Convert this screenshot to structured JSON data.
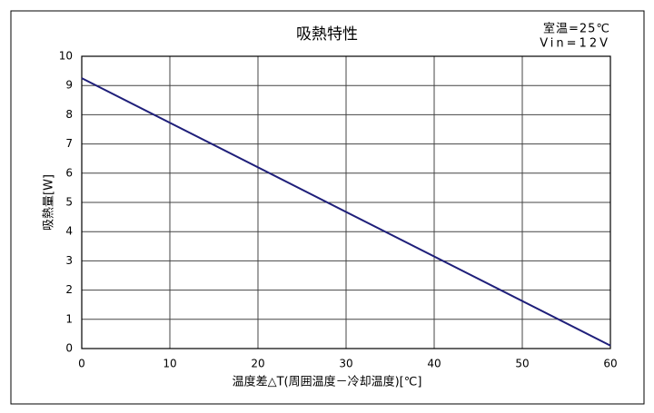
{
  "chart_data": {
    "type": "line",
    "title": "吸熱特性",
    "annotations": [
      "室温=25℃",
      "Vin=12V"
    ],
    "x_label": "温度差△T(周囲温度－冷却温度)[℃]",
    "y_label": "吸熱量[W]",
    "x": [
      0,
      60
    ],
    "series": [
      {
        "color": "#1f1f7a",
        "values": [
          9.25,
          0.1
        ]
      }
    ],
    "xlim": [
      0,
      60
    ],
    "xticks": [
      0,
      10,
      20,
      30,
      40,
      50,
      60
    ],
    "ylim": [
      0,
      10
    ],
    "yticks": [
      0,
      1,
      2,
      3,
      4,
      5,
      6,
      7,
      8,
      9,
      10
    ],
    "grid": true
  }
}
